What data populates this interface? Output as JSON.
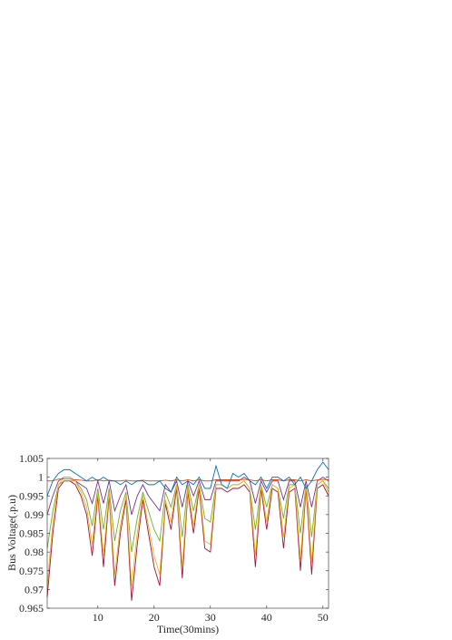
{
  "chart_data": {
    "type": "line",
    "x_label": "Time(30mins)",
    "y_label": "Bus Voltage(.p.u)",
    "x": [
      1,
      2,
      3,
      4,
      5,
      6,
      7,
      8,
      9,
      10,
      11,
      12,
      13,
      14,
      15,
      16,
      17,
      18,
      19,
      20,
      21,
      22,
      23,
      24,
      25,
      26,
      27,
      28,
      29,
      30,
      31,
      32,
      33,
      34,
      35,
      36,
      37,
      38,
      39,
      40,
      41,
      42,
      43,
      44,
      45,
      46,
      47,
      48,
      49,
      50,
      51
    ],
    "xlim": [
      1,
      51
    ],
    "xticks": [
      10,
      20,
      30,
      40,
      50
    ],
    "ylim": [
      0.965,
      1.005
    ],
    "yticks": [
      0.965,
      0.97,
      0.975,
      0.98,
      0.985,
      0.99,
      0.995,
      1,
      1.005
    ],
    "grid": false,
    "series": [
      {
        "color": "#A2142F",
        "values": [
          0.968,
          0.985,
          0.997,
          0.999,
          0.999,
          0.998,
          0.995,
          0.99,
          0.979,
          0.995,
          0.976,
          0.995,
          0.971,
          0.985,
          0.994,
          0.967,
          0.982,
          0.994,
          0.985,
          0.976,
          0.971,
          0.993,
          0.986,
          0.997,
          0.973,
          0.996,
          0.985,
          0.997,
          0.981,
          0.98,
          0.997,
          0.997,
          0.996,
          0.997,
          0.997,
          0.998,
          0.996,
          0.976,
          0.997,
          0.986,
          0.997,
          0.996,
          0.981,
          0.996,
          0.997,
          0.975,
          0.997,
          0.974,
          0.997,
          0.998,
          0.995
        ]
      },
      {
        "color": "#77AC30",
        "values": [
          0.981,
          0.991,
          0.998,
          0.999,
          0.999,
          0.999,
          0.997,
          0.994,
          0.987,
          0.997,
          0.986,
          0.997,
          0.983,
          0.991,
          0.996,
          0.98,
          0.989,
          0.996,
          0.991,
          0.986,
          0.983,
          0.996,
          0.992,
          0.998,
          0.984,
          0.998,
          0.991,
          0.998,
          0.989,
          0.988,
          0.998,
          0.998,
          0.997,
          0.998,
          0.998,
          0.999,
          0.997,
          0.986,
          0.998,
          0.992,
          0.998,
          0.997,
          0.989,
          0.998,
          0.998,
          0.985,
          0.998,
          0.984,
          0.998,
          0.999,
          0.997
        ]
      },
      {
        "color": "#7E2F8E",
        "values": [
          0.99,
          0.995,
          0.999,
          1.0,
          1.0,
          0.999,
          0.998,
          0.997,
          0.993,
          0.999,
          0.993,
          0.999,
          0.991,
          0.995,
          0.998,
          0.99,
          0.995,
          0.998,
          0.995,
          0.993,
          0.991,
          0.998,
          0.996,
          0.999,
          0.992,
          0.999,
          0.995,
          0.999,
          0.994,
          0.994,
          0.999,
          0.999,
          0.999,
          0.999,
          0.999,
          1.0,
          0.999,
          0.993,
          0.999,
          0.996,
          0.999,
          0.999,
          0.994,
          0.999,
          0.999,
          0.992,
          0.999,
          0.992,
          0.999,
          1.0,
          0.999
        ]
      },
      {
        "color": "#EDB120",
        "values": [
          0.971,
          0.988,
          0.998,
          1.0,
          1.0,
          0.999,
          0.996,
          0.992,
          0.982,
          0.996,
          0.979,
          0.996,
          0.974,
          0.987,
          0.995,
          0.971,
          0.985,
          0.995,
          0.987,
          0.979,
          0.974,
          0.994,
          0.988,
          0.998,
          0.976,
          0.997,
          0.987,
          0.998,
          0.983,
          0.982,
          0.998,
          0.998,
          0.997,
          0.998,
          0.998,
          0.999,
          0.997,
          0.979,
          0.998,
          0.988,
          0.998,
          0.997,
          0.984,
          0.997,
          0.998,
          0.978,
          0.998,
          0.977,
          0.998,
          0.999,
          0.996
        ]
      },
      {
        "color": "#D95319",
        "values": [
          0.999,
          0.999,
          0.9995,
          0.9995,
          0.9995,
          0.9993,
          0.9992,
          0.999,
          0.999,
          0.9993,
          0.999,
          0.9992,
          0.999,
          0.999,
          0.9992,
          0.999,
          0.999,
          0.9992,
          0.999,
          0.999,
          0.999,
          0.9992,
          0.999,
          0.9993,
          0.999,
          0.9993,
          0.999,
          0.9993,
          0.999,
          0.999,
          0.9993,
          0.9993,
          0.9993,
          0.9993,
          0.9993,
          0.9994,
          0.9993,
          0.999,
          0.9993,
          0.999,
          0.9993,
          0.9993,
          0.999,
          0.9993,
          0.9993,
          0.999,
          0.9993,
          0.999,
          0.9993,
          0.9994,
          0.9993
        ]
      },
      {
        "color": "#0072BD",
        "values": [
          0.995,
          0.999,
          1.001,
          1.002,
          1.002,
          1.001,
          1.0,
          0.999,
          1.0,
          0.999,
          1.0,
          0.999,
          0.999,
          0.998,
          0.999,
          0.998,
          0.999,
          0.999,
          0.998,
          0.998,
          0.999,
          0.997,
          0.996,
          1.0,
          0.998,
          0.999,
          0.998,
          1.0,
          0.997,
          0.997,
          1.003,
          0.998,
          0.997,
          1.001,
          1.0,
          1.001,
          0.999,
          0.998,
          1.0,
          0.997,
          1.0,
          1.0,
          0.999,
          1.0,
          0.998,
          1.0,
          0.997,
          0.999,
          1.002,
          1.004,
          1.002
        ]
      }
    ]
  }
}
